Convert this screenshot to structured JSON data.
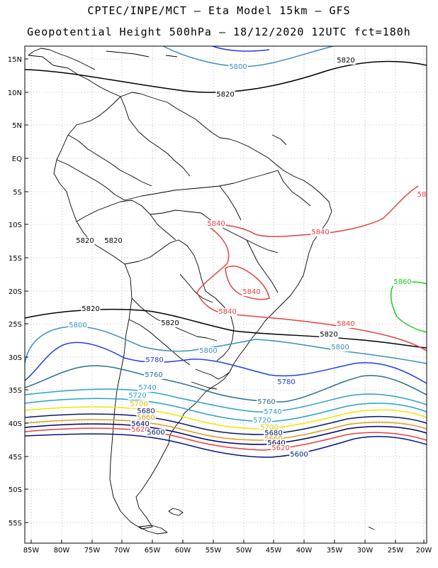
{
  "header": {
    "line1": "CPTEC/INPE/MCT –  Eta Model 15km – GFS",
    "line2": "Geopotential Height 500hPa – 18/12/2020 12UTC fct=180h"
  },
  "lat_ticks": [
    "15N",
    "10N",
    "5N",
    "EQ",
    "5S",
    "10S",
    "15S",
    "20S",
    "25S",
    "30S",
    "35S",
    "40S",
    "45S",
    "50S",
    "55S"
  ],
  "lon_ticks": [
    "85W",
    "80W",
    "75W",
    "70W",
    "65W",
    "60W",
    "55W",
    "50W",
    "45W",
    "40W",
    "35W",
    "30W",
    "25W",
    "20W"
  ],
  "colors": {
    "c5580": "#001a80",
    "c5600": "#001a80",
    "c5620": "#e84040",
    "c5640": "#000066",
    "c5660": "#d9a020",
    "c5680": "#0a1a6a",
    "c5700": "#f2e600",
    "c5720": "#2aa0c8",
    "c5740": "#2aa0c8",
    "c5760": "#2a7090",
    "c5780": "#2040e0",
    "c5800": "#3a90c0",
    "c5820": "#000000",
    "c5840": "#e84040",
    "c5860": "#20cc20"
  },
  "contour_labels": [
    {
      "text": "5800",
      "color": "#3a90c0"
    },
    {
      "text": "5820",
      "color": "#000000"
    },
    {
      "text": "5820",
      "color": "#000000"
    },
    {
      "text": "5820",
      "color": "#000000"
    },
    {
      "text": "5820",
      "color": "#000000"
    },
    {
      "text": "5840",
      "color": "#e84040"
    },
    {
      "text": "5840",
      "color": "#e84040"
    },
    {
      "text": "58",
      "color": "#e84040"
    },
    {
      "text": "5840",
      "color": "#e84040"
    },
    {
      "text": "5840",
      "color": "#e84040"
    },
    {
      "text": "5840",
      "color": "#e84040"
    },
    {
      "text": "5860",
      "color": "#20cc20"
    },
    {
      "text": "5820",
      "color": "#000000"
    },
    {
      "text": "5820",
      "color": "#000000"
    },
    {
      "text": "5820",
      "color": "#000000"
    },
    {
      "text": "5800",
      "color": "#3a90c0"
    },
    {
      "text": "5800",
      "color": "#3a90c0"
    },
    {
      "text": "5800",
      "color": "#3a90c0"
    },
    {
      "text": "5780",
      "color": "#2040e0"
    },
    {
      "text": "5780",
      "color": "#2040e0"
    },
    {
      "text": "5760",
      "color": "#2a7090"
    },
    {
      "text": "5760",
      "color": "#2a7090"
    },
    {
      "text": "5740",
      "color": "#2aa0c8"
    },
    {
      "text": "5740",
      "color": "#2aa0c8"
    },
    {
      "text": "5720",
      "color": "#2aa0c8"
    },
    {
      "text": "5720",
      "color": "#2aa0c8"
    },
    {
      "text": "5700",
      "color": "#d9c400"
    },
    {
      "text": "5700",
      "color": "#d9c400"
    },
    {
      "text": "5680",
      "color": "#0a1a6a"
    },
    {
      "text": "5680",
      "color": "#0a1a6a"
    },
    {
      "text": "5660",
      "color": "#d9a020"
    },
    {
      "text": "5660",
      "color": "#d9a020"
    },
    {
      "text": "5640",
      "color": "#000066"
    },
    {
      "text": "5640",
      "color": "#000066"
    },
    {
      "text": "5620",
      "color": "#e84040"
    },
    {
      "text": "5620",
      "color": "#e84040"
    },
    {
      "text": "5600",
      "color": "#001a80"
    },
    {
      "text": "5600",
      "color": "#001a80"
    }
  ]
}
